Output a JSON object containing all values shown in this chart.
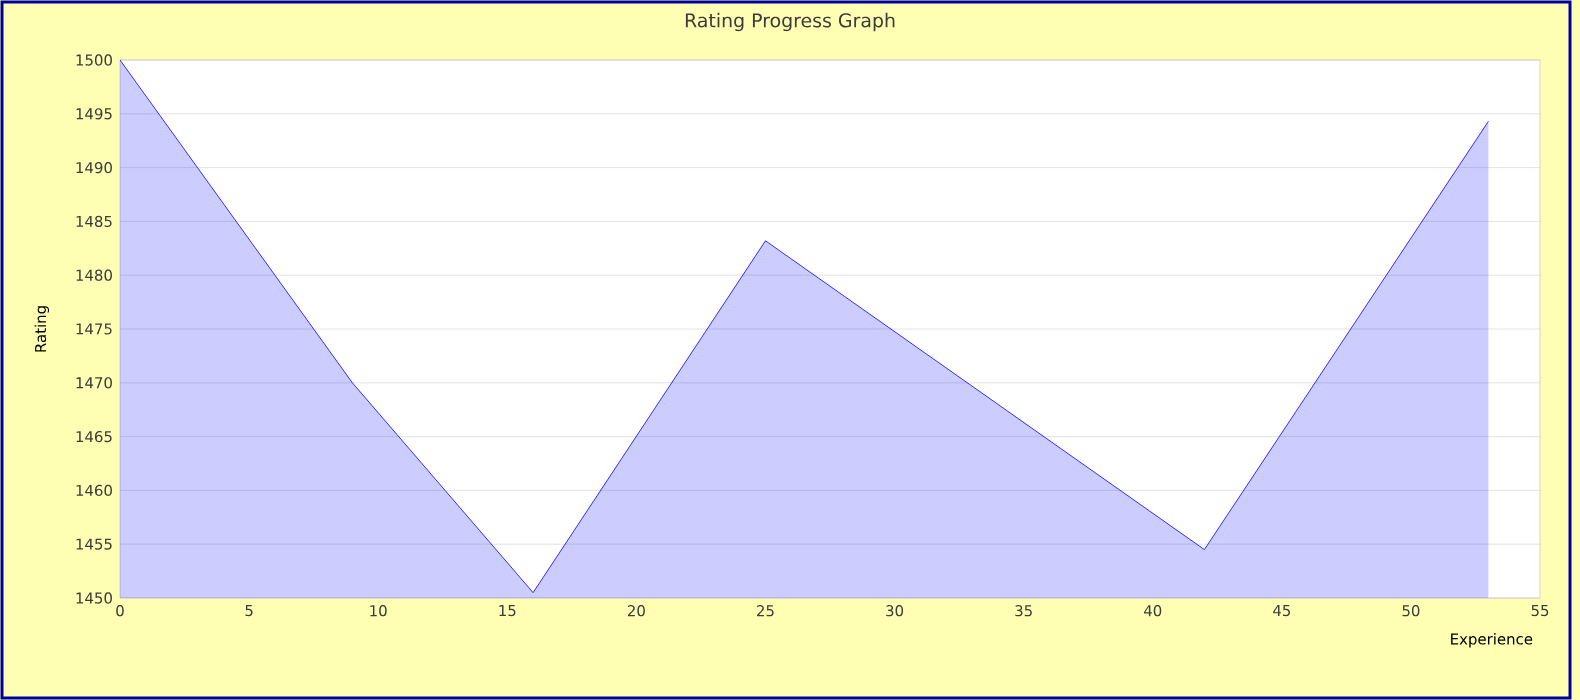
{
  "chart_data": {
    "type": "area",
    "title": "Rating Progress Graph",
    "xlabel": "Experience",
    "ylabel": "Rating",
    "x": [
      0,
      9,
      16,
      25,
      42,
      53
    ],
    "series": [
      {
        "color": "#0000ff",
        "values": [
          1500,
          1470,
          1450.5,
          1483.2,
          1454.5,
          1494.3
        ]
      }
    ],
    "xlim": [
      0,
      55
    ],
    "xticks": [
      0,
      5,
      10,
      15,
      20,
      25,
      30,
      35,
      40,
      45,
      50,
      55
    ],
    "ylim": [
      1450,
      1500
    ],
    "yticks": [
      1450,
      1455,
      1460,
      1465,
      1470,
      1475,
      1480,
      1485,
      1490,
      1495,
      1500
    ],
    "grid": "y"
  }
}
